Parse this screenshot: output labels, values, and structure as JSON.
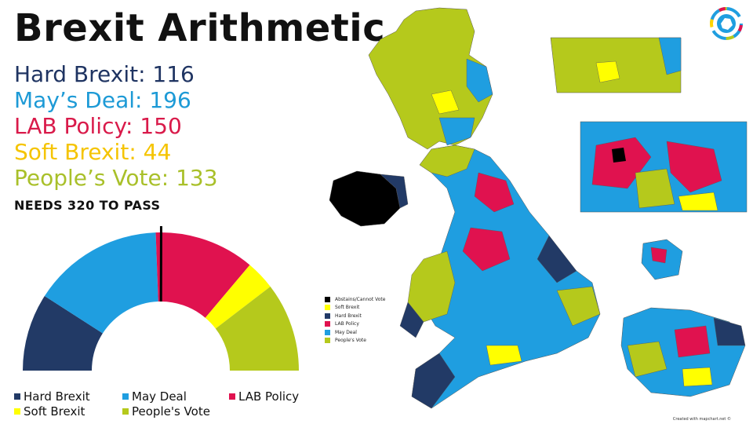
{
  "title": "Brexit Arithmetic",
  "tally": [
    {
      "label": "Hard Brexit: 116",
      "color": "#1f3462"
    },
    {
      "label": "May’s Deal: 196",
      "color": "#1d9ad6"
    },
    {
      "label": "LAB Policy: 150",
      "color": "#d91a4a"
    },
    {
      "label": "Soft Brexit: 44",
      "color": "#f5c400"
    },
    {
      "label": "People’s Vote: 133",
      "color": "#a9c02a"
    }
  ],
  "threshold_label": "NEEDS 320 TO PASS",
  "chart_data": {
    "type": "pie",
    "layout": "semicircle-parliament",
    "categories": [
      "Hard Brexit",
      "May Deal",
      "LAB Policy",
      "Soft Brexit",
      "People's Vote"
    ],
    "values": [
      116,
      196,
      150,
      44,
      133
    ],
    "colors": [
      "#223a66",
      "#1f9ee0",
      "#e0124f",
      "#ffff00",
      "#b5c91c"
    ],
    "threshold": 320,
    "legend_position": "bottom"
  },
  "legend": [
    {
      "label": "Hard Brexit",
      "color": "#223a66"
    },
    {
      "label": "May Deal",
      "color": "#1f9ee0"
    },
    {
      "label": "LAB Policy",
      "color": "#e0124f"
    },
    {
      "label": "Soft Brexit",
      "color": "#ffff00"
    },
    {
      "label": "People's Vote",
      "color": "#b5c91c"
    }
  ],
  "map_legend": [
    {
      "label": "Abstains/Cannot Vote",
      "color": "#000000"
    },
    {
      "label": "Soft Brexit",
      "color": "#ffff00"
    },
    {
      "label": "Hard Brexit",
      "color": "#223a66"
    },
    {
      "label": "LAB Policy",
      "color": "#e0124f"
    },
    {
      "label": "May Deal",
      "color": "#1f9ee0"
    },
    {
      "label": "People's Vote",
      "color": "#b5c91c"
    }
  ],
  "credit": "Created with mapchart.net ©"
}
